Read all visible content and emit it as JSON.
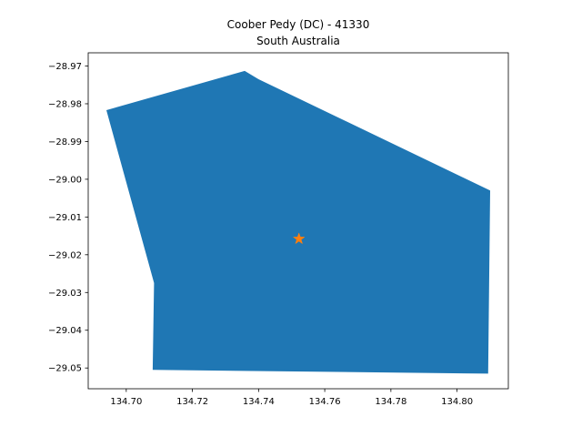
{
  "chart_data": {
    "type": "map-polygon",
    "title": "Coober Pedy (DC) - 41330",
    "subtitle": "South Australia",
    "xlim": [
      134.6885,
      134.8155
    ],
    "ylim": [
      -29.0555,
      -28.9665
    ],
    "xticks": [
      134.7,
      134.72,
      134.74,
      134.76,
      134.78,
      134.8
    ],
    "xtick_labels": [
      "134.70",
      "134.72",
      "134.74",
      "134.76",
      "134.78",
      "134.80"
    ],
    "yticks": [
      -28.97,
      -28.98,
      -28.99,
      -29.0,
      -29.01,
      -29.02,
      -29.03,
      -29.04,
      -29.05
    ],
    "ytick_labels": [
      "−28.97",
      "−28.98",
      "−28.99",
      "−29.00",
      "−29.01",
      "−29.02",
      "−29.03",
      "−29.04",
      "−29.05"
    ],
    "polygon": [
      [
        134.694,
        -28.9817
      ],
      [
        134.7358,
        -28.9713
      ],
      [
        134.74,
        -28.9735
      ],
      [
        134.81,
        -29.003
      ],
      [
        134.8094,
        -29.0515
      ],
      [
        134.708,
        -29.0505
      ],
      [
        134.7084,
        -29.0275
      ]
    ],
    "marker": {
      "x": 134.7522,
      "y": -29.0158,
      "symbol": "star"
    },
    "colors": {
      "polygon": "#1f77b4",
      "marker": "#ff7f0e",
      "axes": "#000000"
    },
    "grid": false
  }
}
